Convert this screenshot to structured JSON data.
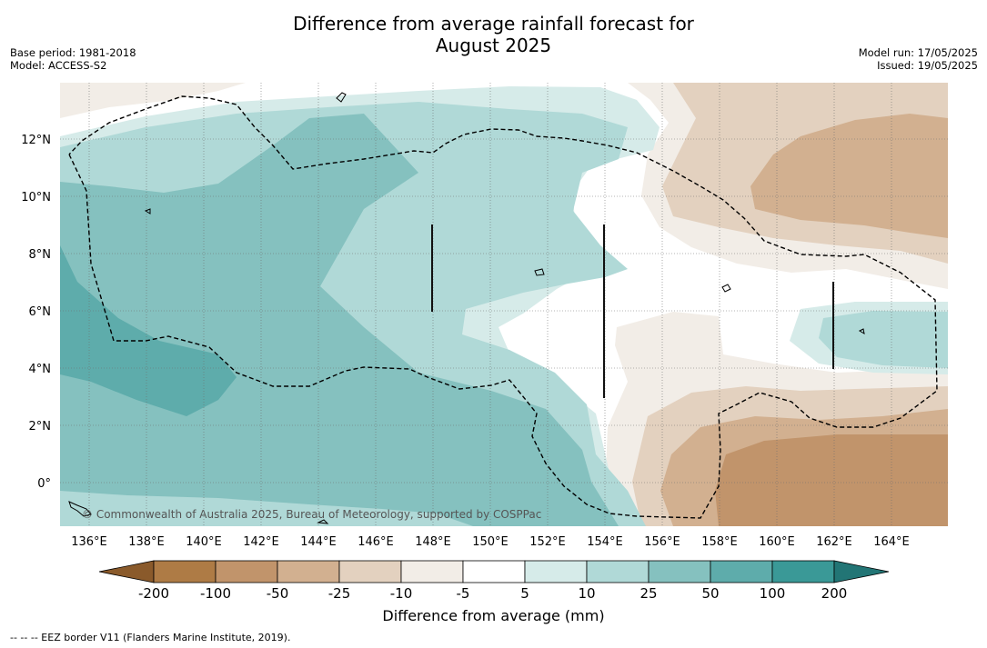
{
  "title_line1": "Difference from average rainfall forecast for",
  "title_line2": "August 2025",
  "base_period": "Base period: 1981-2018",
  "model": "Model: ACCESS-S2",
  "model_run": "Model run: 17/05/2025",
  "issued": "Issued: 19/05/2025",
  "copyright": "© Commonwealth of Australia 2025, Bureau of Meteorology, supported by COSPPac",
  "footnote": "--  --  -- EEZ border V11 (Flanders Marine Institute, 2019).",
  "legend_title": "Difference from average (mm)",
  "x_ticks": [
    "136°E",
    "138°E",
    "140°E",
    "142°E",
    "144°E",
    "146°E",
    "148°E",
    "150°E",
    "152°E",
    "154°E",
    "156°E",
    "158°E",
    "160°E",
    "162°E",
    "164°E"
  ],
  "y_ticks": [
    "12°N",
    "10°N",
    "8°N",
    "6°N",
    "4°N",
    "2°N",
    "0°"
  ],
  "legend_labels": [
    "-200",
    "-100",
    "-50",
    "-25",
    "-10",
    "-5",
    "5",
    "10",
    "25",
    "50",
    "100",
    "200"
  ],
  "colors": {
    "dry_extreme": "#8a5a2b",
    "dry_200": "#ae7b45",
    "dry_100": "#c1946b",
    "dry_50": "#d2b090",
    "dry_25": "#e3d1bf",
    "dry_10": "#f2ede7",
    "neutral": "#ffffff",
    "wet_5": "#d6ebe9",
    "wet_10": "#b0d9d7",
    "wet_25": "#85c1bf",
    "wet_50": "#5eacab",
    "wet_100": "#3a9997",
    "wet_extreme": "#227575"
  }
}
